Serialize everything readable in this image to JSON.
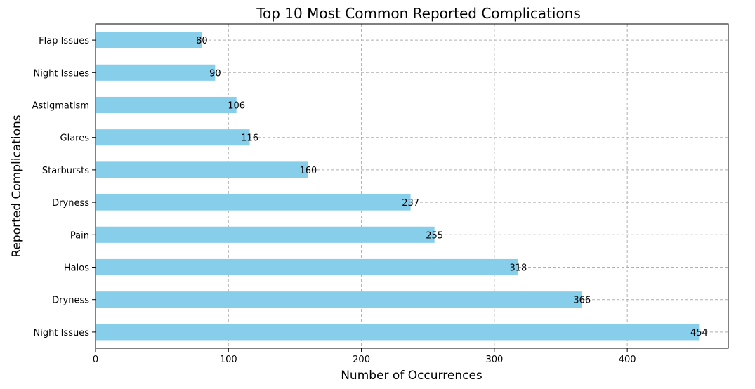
{
  "chart_data": {
    "type": "bar",
    "orientation": "horizontal",
    "title": "Top 10 Most Common Reported Complications",
    "xlabel": "Number of Occurrences",
    "ylabel": "Reported Complications",
    "categories": [
      "Night Issues",
      "Dryness",
      "Halos",
      "Pain",
      "Dryness",
      "Starbursts",
      "Glares",
      "Astigmatism",
      "Night Issues",
      "Flap Issues"
    ],
    "values": [
      454,
      366,
      318,
      255,
      237,
      160,
      116,
      106,
      90,
      80
    ],
    "data_labels": [
      "454",
      "366",
      "318",
      "255",
      "237",
      "160",
      "116",
      "106",
      "90",
      "80"
    ],
    "xlim": [
      0,
      476
    ],
    "xticks": [
      0,
      100,
      200,
      300,
      400
    ],
    "xtick_labels": [
      "0",
      "100",
      "200",
      "300",
      "400"
    ],
    "grid": true,
    "bar_color": "#87ceeb"
  }
}
